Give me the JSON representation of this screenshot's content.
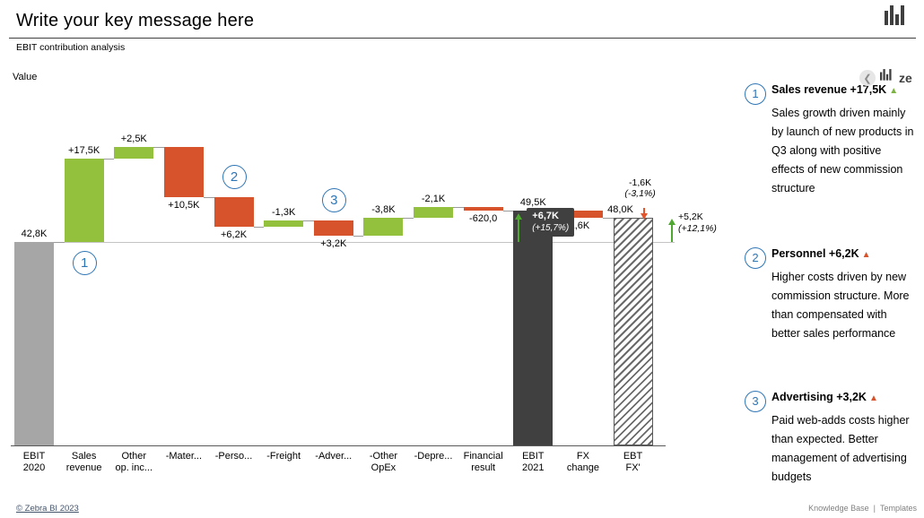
{
  "header": {
    "title": "Write your key message here",
    "subtitle": "EBIT contribution analysis",
    "value_label": "Value"
  },
  "panel_header": {
    "collapse_icon": "❮",
    "brand_text": "ze"
  },
  "comments": [
    {
      "n": "1",
      "title": "Sales revenue +17,5K",
      "arrow": "▲",
      "arrow_style": "color:#7CB342",
      "body": "Sales growth driven mainly by launch of new products in Q3 along with positive effects of new commission structure"
    },
    {
      "n": "2",
      "title": "Personnel +6,2K",
      "arrow": "▲",
      "arrow_style": "color:#D6532B",
      "body": "Higher costs driven by new commission structure. More than compensated with better sales performance"
    },
    {
      "n": "3",
      "title": "Advertising +3,2K",
      "arrow": "▲",
      "arrow_style": "color:#D6532B",
      "body": "Paid web-adds costs higher than expected. Better management of advertising budgets"
    }
  ],
  "footer": {
    "copyright": "© Zebra BI 2023",
    "links": [
      "Knowledge Base",
      "Templates"
    ],
    "separator": "|"
  },
  "colors": {
    "green": "#94C13D",
    "red": "#D6532B",
    "gray": "#A6A6A6",
    "dark": "#404040",
    "accent_blue": "#2E75B6",
    "arrow_green": "#4EA72E",
    "arrow_red": "#E2542C",
    "badge_bg": "#404040"
  },
  "chart_data": {
    "type": "waterfall",
    "title": "EBIT contribution analysis",
    "baseline_value": 42.8,
    "items": [
      {
        "category": "EBIT 2020",
        "label_lines": [
          "EBIT",
          "2020"
        ],
        "kind": "total",
        "value": 42.8,
        "data_label": "42,8K",
        "color": "gray",
        "label_pos": "above"
      },
      {
        "category": "Sales revenue",
        "label_lines": [
          "Sales",
          "revenue"
        ],
        "kind": "delta",
        "value": 17.5,
        "data_label": "+17,5K",
        "color": "green",
        "label_pos": "above"
      },
      {
        "category": "Other op. inc...",
        "label_lines": [
          "Other",
          "op. inc..."
        ],
        "kind": "delta",
        "value": 2.5,
        "data_label": "+2,5K",
        "color": "green",
        "label_pos": "above"
      },
      {
        "category": "-Mater...",
        "label_lines": [
          "-Mater..."
        ],
        "kind": "delta",
        "value": -10.5,
        "data_label": "+10,5K",
        "color": "red",
        "label_pos": "below"
      },
      {
        "category": "-Perso...",
        "label_lines": [
          "-Perso..."
        ],
        "kind": "delta",
        "value": -6.2,
        "data_label": "+6,2K",
        "color": "red",
        "label_pos": "below"
      },
      {
        "category": "-Freight",
        "label_lines": [
          "-Freight"
        ],
        "kind": "delta",
        "value": 1.3,
        "data_label": "-1,3K",
        "color": "green",
        "label_pos": "above"
      },
      {
        "category": "-Adver...",
        "label_lines": [
          "-Adver..."
        ],
        "kind": "delta",
        "value": -3.2,
        "data_label": "+3,2K",
        "color": "red",
        "label_pos": "below"
      },
      {
        "category": "-Other OpEx",
        "label_lines": [
          "-Other",
          "OpEx"
        ],
        "kind": "delta",
        "value": 3.8,
        "data_label": "-3,8K",
        "color": "green",
        "label_pos": "above"
      },
      {
        "category": "-Depre...",
        "label_lines": [
          "-Depre..."
        ],
        "kind": "delta",
        "value": 2.1,
        "data_label": "-2,1K",
        "color": "green",
        "label_pos": "above"
      },
      {
        "category": "Financial result",
        "label_lines": [
          "Financial",
          "result"
        ],
        "kind": "delta",
        "value": -0.62,
        "data_label": "-620,0",
        "color": "red",
        "label_pos": "below"
      },
      {
        "category": "EBIT 2021",
        "label_lines": [
          "EBIT",
          "2021"
        ],
        "kind": "total",
        "value": 49.5,
        "data_label": "49,5K",
        "color": "dark",
        "label_pos": "above"
      },
      {
        "category": "FX change",
        "label_lines": [
          "FX",
          "change"
        ],
        "kind": "delta",
        "value": -1.6,
        "data_label": "1,6K",
        "color": "red",
        "label_pos": "below",
        "label_dx": -4
      },
      {
        "category": "EBT FX'",
        "label_lines": [
          "EBT",
          "FX'"
        ],
        "kind": "total",
        "value": 48.0,
        "data_label": "48,0K",
        "color": "hatched",
        "label_pos": "above",
        "label_dx": -14
      }
    ],
    "markers": [
      {
        "n": "1",
        "item_index": 1,
        "position": "below"
      },
      {
        "n": "2",
        "item_index": 4,
        "position": "above"
      },
      {
        "n": "3",
        "item_index": 6,
        "position": "above"
      }
    ],
    "variances": [
      {
        "target_index": 10,
        "style": "badge",
        "direction": "up",
        "label": "+6,7K",
        "pct": "(+15,7%)"
      },
      {
        "target_index": 12,
        "style": "text-above",
        "direction": "down",
        "label": "-1,6K",
        "pct": "(-3,1%)"
      },
      {
        "target_index": 12,
        "style": "right-edge",
        "direction": "up",
        "label": "+5,2K",
        "pct": "(+12,1%)"
      }
    ]
  }
}
